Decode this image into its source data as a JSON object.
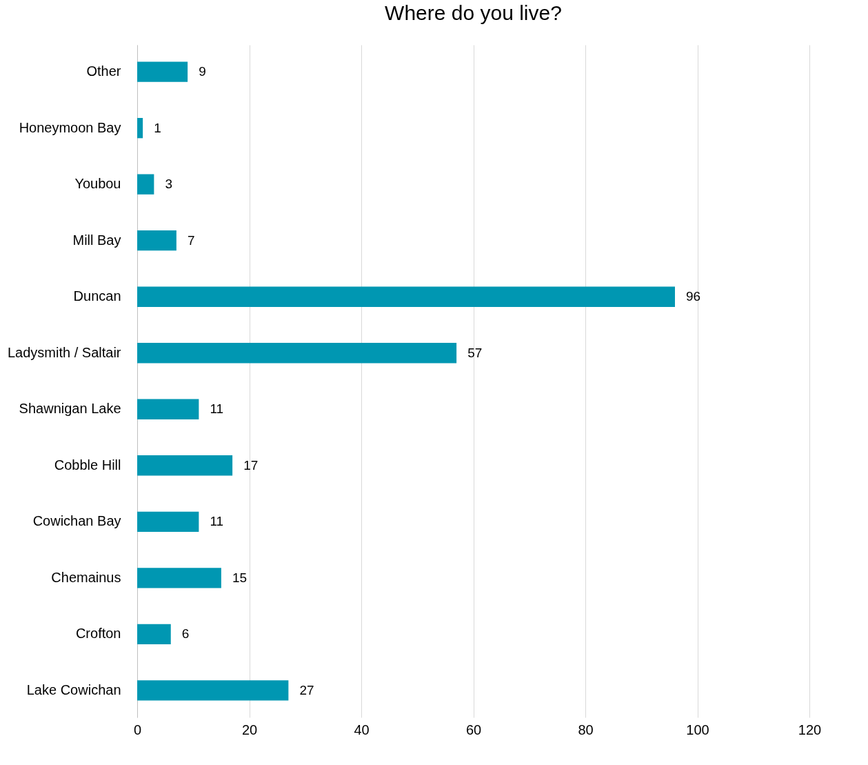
{
  "chart_data": {
    "type": "bar",
    "orientation": "horizontal",
    "title": "Where do you live?",
    "categories": [
      "Other",
      "Honeymoon Bay",
      "Youbou",
      "Mill Bay",
      "Duncan",
      "Ladysmith / Saltair",
      "Shawnigan Lake",
      "Cobble Hill",
      "Cowichan Bay",
      "Chemainus",
      "Crofton",
      "Lake Cowichan"
    ],
    "values": [
      9,
      1,
      3,
      7,
      96,
      57,
      11,
      17,
      11,
      15,
      6,
      27
    ],
    "color": "#0097b2",
    "xlim": [
      0,
      120
    ],
    "xticks": [
      0,
      20,
      40,
      60,
      80,
      100,
      120
    ],
    "grid": "x",
    "data_labels": true
  }
}
